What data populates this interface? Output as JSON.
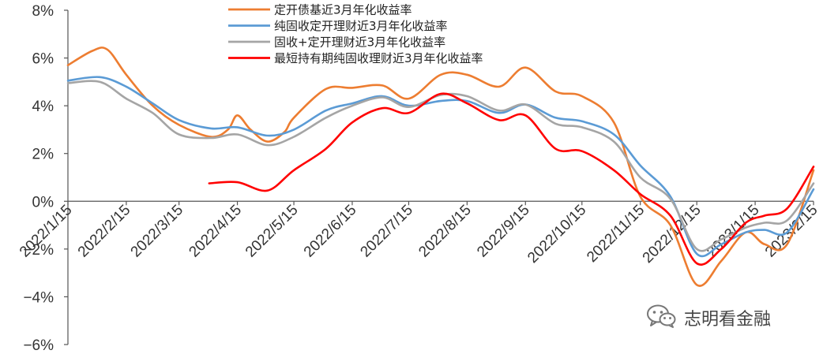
{
  "chart_data": {
    "type": "line",
    "title": "",
    "xlabel": "",
    "ylabel": "",
    "ylim": [
      -6,
      8
    ],
    "y_ticks": [
      -6,
      -4,
      -2,
      0,
      2,
      4,
      6,
      8
    ],
    "y_tick_labels": [
      "−6%",
      "−4%",
      "−2%",
      "0%",
      "2%",
      "4%",
      "6%",
      "8%"
    ],
    "x_tick_labels": [
      "2022/1/15",
      "2022/2/15",
      "2022/3/15",
      "2022/4/15",
      "2022/5/15",
      "2022/6/15",
      "2022/7/15",
      "2022/8/15",
      "2022/9/15",
      "2022/10/15",
      "2022/11/15",
      "2022/12/15",
      "2023/1/15",
      "2023/2/15"
    ],
    "x_tick_dates": [
      "2022-01-15",
      "2022-02-15",
      "2022-03-15",
      "2022-04-15",
      "2022-05-15",
      "2022-06-15",
      "2022-07-15",
      "2022-08-15",
      "2022-09-15",
      "2022-10-15",
      "2022-11-15",
      "2022-12-15",
      "2023-01-15",
      "2023-02-15"
    ],
    "legend_position": "top-center",
    "series": [
      {
        "name": "定开债基近3月年化收益率",
        "color": "#ED7D31",
        "points": [
          [
            "2022-01-15",
            5.7
          ],
          [
            "2022-01-28",
            6.3
          ],
          [
            "2022-02-05",
            6.35
          ],
          [
            "2022-02-15",
            5.3
          ],
          [
            "2022-03-01",
            4.0
          ],
          [
            "2022-03-15",
            3.2
          ],
          [
            "2022-04-01",
            2.7
          ],
          [
            "2022-04-10",
            3.0
          ],
          [
            "2022-04-15",
            3.6
          ],
          [
            "2022-04-22",
            3.0
          ],
          [
            "2022-05-01",
            2.5
          ],
          [
            "2022-05-10",
            2.9
          ],
          [
            "2022-05-15",
            3.5
          ],
          [
            "2022-06-01",
            4.7
          ],
          [
            "2022-06-15",
            4.75
          ],
          [
            "2022-07-01",
            4.85
          ],
          [
            "2022-07-15",
            4.3
          ],
          [
            "2022-08-01",
            5.3
          ],
          [
            "2022-08-15",
            5.3
          ],
          [
            "2022-09-01",
            4.8
          ],
          [
            "2022-09-15",
            5.6
          ],
          [
            "2022-10-01",
            4.6
          ],
          [
            "2022-10-15",
            4.4
          ],
          [
            "2022-11-01",
            3.3
          ],
          [
            "2022-11-15",
            0.2
          ],
          [
            "2022-12-01",
            -1.0
          ],
          [
            "2022-12-15",
            -3.5
          ],
          [
            "2022-12-28",
            -2.5
          ],
          [
            "2023-01-10",
            -1.3
          ],
          [
            "2023-01-20",
            -1.8
          ],
          [
            "2023-02-01",
            -1.8
          ],
          [
            "2023-02-15",
            1.3
          ]
        ]
      },
      {
        "name": "纯固收定开理财近3月年化收益率",
        "color": "#5B9BD5",
        "points": [
          [
            "2022-01-15",
            5.05
          ],
          [
            "2022-02-01",
            5.2
          ],
          [
            "2022-02-15",
            4.8
          ],
          [
            "2022-03-01",
            4.1
          ],
          [
            "2022-03-15",
            3.4
          ],
          [
            "2022-04-01",
            3.05
          ],
          [
            "2022-04-15",
            3.1
          ],
          [
            "2022-05-01",
            2.75
          ],
          [
            "2022-05-15",
            3.0
          ],
          [
            "2022-06-01",
            3.8
          ],
          [
            "2022-06-15",
            4.1
          ],
          [
            "2022-07-01",
            4.4
          ],
          [
            "2022-07-15",
            4.0
          ],
          [
            "2022-08-01",
            4.2
          ],
          [
            "2022-08-15",
            4.2
          ],
          [
            "2022-09-01",
            3.7
          ],
          [
            "2022-09-15",
            4.05
          ],
          [
            "2022-10-01",
            3.5
          ],
          [
            "2022-10-15",
            3.35
          ],
          [
            "2022-11-01",
            2.8
          ],
          [
            "2022-11-15",
            1.5
          ],
          [
            "2022-12-01",
            0.2
          ],
          [
            "2022-12-15",
            -2.2
          ],
          [
            "2022-12-28",
            -1.8
          ],
          [
            "2023-01-10",
            -1.3
          ],
          [
            "2023-01-20",
            -1.2
          ],
          [
            "2023-02-01",
            -1.3
          ],
          [
            "2023-02-15",
            0.5
          ]
        ]
      },
      {
        "name": "固收+定开理财近3月年化收益率",
        "color": "#A5A5A5",
        "points": [
          [
            "2022-01-15",
            4.95
          ],
          [
            "2022-02-01",
            5.0
          ],
          [
            "2022-02-15",
            4.3
          ],
          [
            "2022-03-01",
            3.7
          ],
          [
            "2022-03-15",
            2.8
          ],
          [
            "2022-04-01",
            2.65
          ],
          [
            "2022-04-15",
            2.8
          ],
          [
            "2022-05-01",
            2.35
          ],
          [
            "2022-05-15",
            2.7
          ],
          [
            "2022-06-01",
            3.5
          ],
          [
            "2022-06-15",
            4.0
          ],
          [
            "2022-07-01",
            4.35
          ],
          [
            "2022-07-15",
            3.95
          ],
          [
            "2022-08-01",
            4.45
          ],
          [
            "2022-08-15",
            4.4
          ],
          [
            "2022-09-01",
            3.8
          ],
          [
            "2022-09-15",
            4.05
          ],
          [
            "2022-10-01",
            3.25
          ],
          [
            "2022-10-15",
            3.1
          ],
          [
            "2022-11-01",
            2.5
          ],
          [
            "2022-11-15",
            1.0
          ],
          [
            "2022-12-01",
            0.1
          ],
          [
            "2022-12-15",
            -2.0
          ],
          [
            "2022-12-28",
            -1.6
          ],
          [
            "2023-01-10",
            -1.1
          ],
          [
            "2023-01-20",
            -0.9
          ],
          [
            "2023-02-01",
            -0.8
          ],
          [
            "2023-02-15",
            0.75
          ]
        ]
      },
      {
        "name": "最短持有期纯固收理财近3月年化收益率",
        "color": "#FF0000",
        "points": [
          [
            "2022-03-31",
            0.75
          ],
          [
            "2022-04-15",
            0.8
          ],
          [
            "2022-05-01",
            0.45
          ],
          [
            "2022-05-15",
            1.3
          ],
          [
            "2022-06-01",
            2.2
          ],
          [
            "2022-06-15",
            3.3
          ],
          [
            "2022-07-01",
            3.9
          ],
          [
            "2022-07-15",
            3.7
          ],
          [
            "2022-08-01",
            4.5
          ],
          [
            "2022-08-15",
            4.1
          ],
          [
            "2022-09-01",
            3.4
          ],
          [
            "2022-09-15",
            3.6
          ],
          [
            "2022-10-01",
            2.2
          ],
          [
            "2022-10-15",
            2.1
          ],
          [
            "2022-11-01",
            1.3
          ],
          [
            "2022-11-15",
            0.3
          ],
          [
            "2022-12-01",
            -0.6
          ],
          [
            "2022-12-15",
            -2.6
          ],
          [
            "2022-12-28",
            -2.0
          ],
          [
            "2023-01-10",
            -0.9
          ],
          [
            "2023-01-20",
            -0.6
          ],
          [
            "2023-02-01",
            -0.3
          ],
          [
            "2023-02-15",
            1.45
          ]
        ]
      }
    ]
  },
  "watermark": {
    "text": "志明看金融",
    "icon": "wechat-icon"
  }
}
